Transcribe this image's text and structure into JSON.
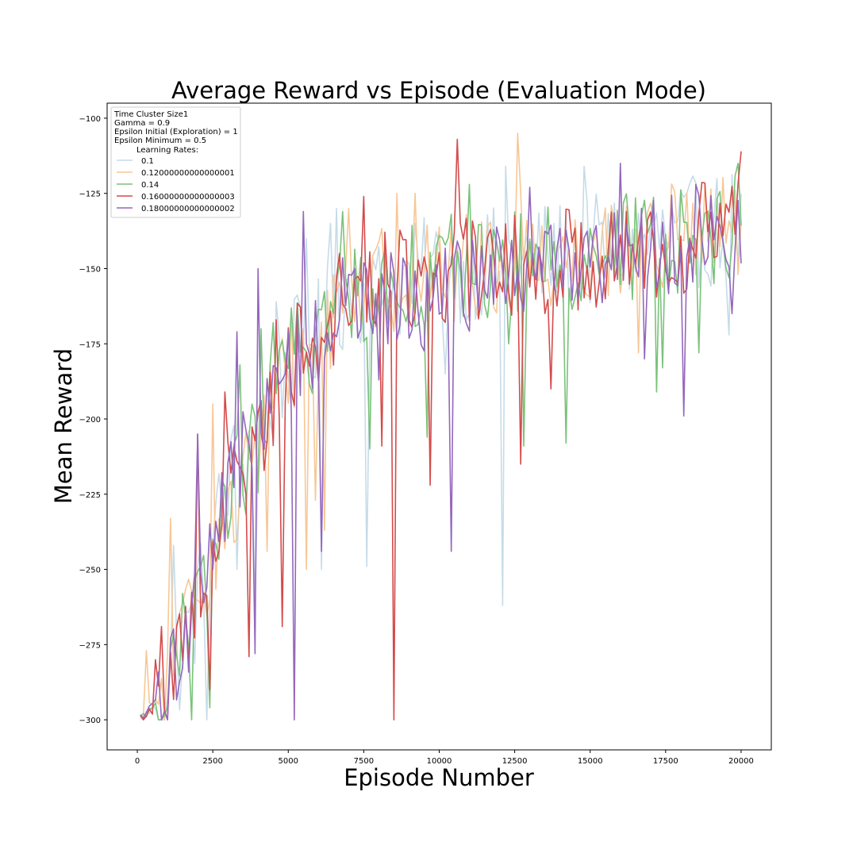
{
  "colors": {
    "lr_0_10": "#c6dbe8",
    "lr_0_12": "#f7c796",
    "lr_0_14": "#7ac27a",
    "lr_0_16": "#d44b4b",
    "lr_0_18": "#9467bd"
  },
  "chart_data": {
    "type": "line",
    "title": "Average Reward vs Episode (Evaluation Mode)",
    "xlabel": "Episode Number",
    "ylabel": "Mean Reward",
    "xlim": [
      -1000,
      21000
    ],
    "ylim": [
      -310,
      -95
    ],
    "xticks": [
      0,
      2500,
      5000,
      7500,
      10000,
      12500,
      15000,
      17500,
      20000
    ],
    "yticks": [
      -300,
      -275,
      -250,
      -225,
      -200,
      -175,
      -150,
      -125,
      -100
    ],
    "grid": false,
    "legend_position": "top-left",
    "legend_header": [
      "Time Cluster Size1",
      "Gamma = 0.9",
      "Epsilon Initial (Exploration) = 1",
      "Epsilon Minimum = 0.5"
    ],
    "legend_title": "Learning Rates:",
    "series_generation": {
      "x_start": 100,
      "x_end": 20000,
      "x_step": 100
    },
    "series": [
      {
        "name": "0.1",
        "color": "#c6dbe8",
        "anchors": [
          [
            100,
            -300
          ],
          [
            1000,
            -292
          ],
          [
            2000,
            -262
          ],
          [
            3000,
            -220
          ],
          [
            4000,
            -206
          ],
          [
            5000,
            -180
          ],
          [
            6000,
            -172
          ],
          [
            7000,
            -156
          ],
          [
            8000,
            -158
          ],
          [
            10000,
            -150
          ],
          [
            12000,
            -148
          ],
          [
            14000,
            -146
          ],
          [
            16000,
            -143
          ],
          [
            18000,
            -139
          ],
          [
            20000,
            -135
          ]
        ],
        "amplitude": 19,
        "spikes": [
          [
            1200,
            -242
          ],
          [
            2300,
            -300
          ],
          [
            3300,
            -250
          ],
          [
            3900,
            -262
          ],
          [
            4600,
            -161
          ],
          [
            5600,
            -140
          ],
          [
            6100,
            -250
          ],
          [
            6400,
            -135
          ],
          [
            6600,
            -130
          ],
          [
            7600,
            -249
          ],
          [
            10200,
            -185
          ],
          [
            11000,
            -165
          ],
          [
            12100,
            -262
          ],
          [
            12200,
            -116
          ],
          [
            14800,
            -116
          ],
          [
            19600,
            -172
          ],
          [
            20000,
            -125
          ]
        ]
      },
      {
        "name": "0.12000000000000001",
        "color": "#f7c796",
        "anchors": [
          [
            100,
            -300
          ],
          [
            1000,
            -288
          ],
          [
            2000,
            -258
          ],
          [
            3000,
            -228
          ],
          [
            4000,
            -210
          ],
          [
            5000,
            -180
          ],
          [
            6000,
            -172
          ],
          [
            7000,
            -156
          ],
          [
            8000,
            -154
          ],
          [
            10000,
            -151
          ],
          [
            12000,
            -149
          ],
          [
            14000,
            -146
          ],
          [
            16000,
            -142
          ],
          [
            18000,
            -139
          ],
          [
            20000,
            -137
          ]
        ],
        "amplitude": 18,
        "spikes": [
          [
            300,
            -277
          ],
          [
            1100,
            -233
          ],
          [
            2500,
            -195
          ],
          [
            3300,
            -240
          ],
          [
            3800,
            -215
          ],
          [
            4300,
            -244
          ],
          [
            5600,
            -250
          ],
          [
            5900,
            -227
          ],
          [
            6200,
            -237
          ],
          [
            6900,
            -150
          ],
          [
            7000,
            -130
          ],
          [
            8600,
            -125
          ],
          [
            9200,
            -125
          ],
          [
            12600,
            -105
          ],
          [
            12700,
            -125
          ],
          [
            16600,
            -178
          ],
          [
            19900,
            -152
          ]
        ]
      },
      {
        "name": "0.14",
        "color": "#7ac27a",
        "anchors": [
          [
            100,
            -300
          ],
          [
            1000,
            -290
          ],
          [
            2000,
            -262
          ],
          [
            3000,
            -226
          ],
          [
            4000,
            -208
          ],
          [
            5000,
            -180
          ],
          [
            6000,
            -172
          ],
          [
            7000,
            -158
          ],
          [
            8000,
            -156
          ],
          [
            10000,
            -150
          ],
          [
            12000,
            -149
          ],
          [
            14000,
            -147
          ],
          [
            16000,
            -143
          ],
          [
            18000,
            -140
          ],
          [
            20000,
            -135
          ]
        ],
        "amplitude": 18,
        "spikes": [
          [
            1800,
            -300
          ],
          [
            2400,
            -296
          ],
          [
            3400,
            -182
          ],
          [
            4100,
            -170
          ],
          [
            4500,
            -168
          ],
          [
            6800,
            -131
          ],
          [
            7700,
            -210
          ],
          [
            9600,
            -206
          ],
          [
            11000,
            -122
          ],
          [
            12300,
            -175
          ],
          [
            12800,
            -209
          ],
          [
            14200,
            -208
          ],
          [
            17200,
            -191
          ],
          [
            17400,
            -183
          ],
          [
            18600,
            -178
          ],
          [
            19900,
            -115
          ]
        ]
      },
      {
        "name": "0.16000000000000003",
        "color": "#d44b4b",
        "anchors": [
          [
            100,
            -300
          ],
          [
            1000,
            -292
          ],
          [
            2000,
            -258
          ],
          [
            3000,
            -222
          ],
          [
            4000,
            -206
          ],
          [
            5000,
            -180
          ],
          [
            6000,
            -172
          ],
          [
            7000,
            -157
          ],
          [
            8000,
            -155
          ],
          [
            10000,
            -152
          ],
          [
            12000,
            -150
          ],
          [
            14000,
            -147
          ],
          [
            16000,
            -144
          ],
          [
            18000,
            -141
          ],
          [
            20000,
            -132
          ]
        ],
        "amplitude": 18,
        "spikes": [
          [
            600,
            -280
          ],
          [
            800,
            -269
          ],
          [
            2000,
            -205
          ],
          [
            2400,
            -290
          ],
          [
            2900,
            -191
          ],
          [
            3700,
            -279
          ],
          [
            4800,
            -269
          ],
          [
            4600,
            -167
          ],
          [
            7500,
            -126
          ],
          [
            8100,
            -209
          ],
          [
            8500,
            -300
          ],
          [
            9700,
            -222
          ],
          [
            10600,
            -107
          ],
          [
            12700,
            -215
          ],
          [
            13700,
            -190
          ],
          [
            20000,
            -111
          ]
        ]
      },
      {
        "name": "0.18000000000000002",
        "color": "#9467bd",
        "anchors": [
          [
            100,
            -300
          ],
          [
            1000,
            -290
          ],
          [
            2000,
            -258
          ],
          [
            3000,
            -222
          ],
          [
            4000,
            -206
          ],
          [
            5000,
            -182
          ],
          [
            6000,
            -172
          ],
          [
            7000,
            -160
          ],
          [
            8000,
            -162
          ],
          [
            10000,
            -160
          ],
          [
            12000,
            -152
          ],
          [
            14000,
            -148
          ],
          [
            16000,
            -143
          ],
          [
            18000,
            -141
          ],
          [
            20000,
            -135
          ]
        ],
        "amplitude": 17,
        "spikes": [
          [
            2000,
            -205
          ],
          [
            3300,
            -171
          ],
          [
            3900,
            -278
          ],
          [
            4000,
            -150
          ],
          [
            5200,
            -300
          ],
          [
            5500,
            -131
          ],
          [
            6100,
            -244
          ],
          [
            7200,
            -150
          ],
          [
            8000,
            -187
          ],
          [
            10400,
            -244
          ],
          [
            13000,
            -123
          ],
          [
            16000,
            -115
          ],
          [
            16800,
            -180
          ],
          [
            18100,
            -199
          ],
          [
            18500,
            -122
          ],
          [
            19700,
            -165
          ]
        ]
      }
    ]
  }
}
